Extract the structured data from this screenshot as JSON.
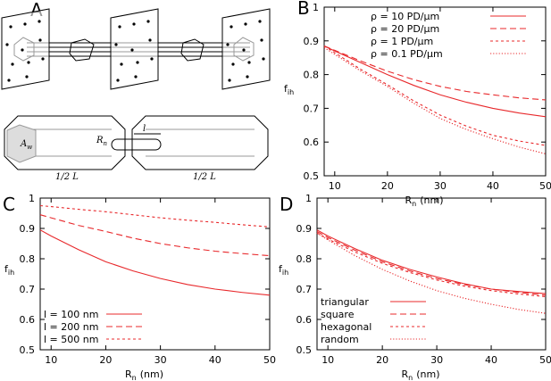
{
  "chart_data": [
    {
      "type": "line",
      "panel": "B",
      "x_label": "R",
      "x_label_sub": "n",
      "x_label_rest": "(nm)",
      "y_label": "f",
      "y_label_sub": "ih",
      "x": [
        8,
        10,
        15,
        20,
        25,
        30,
        35,
        40,
        45,
        50
      ],
      "xlim": [
        8,
        50
      ],
      "xticks": [
        10,
        20,
        30,
        40,
        50
      ],
      "ylim": [
        0.5,
        1
      ],
      "yticks": [
        0.5,
        0.6,
        0.7,
        0.8,
        0.9,
        1
      ],
      "legend": "upper-right",
      "series": [
        {
          "name": "ρ = 10 PD/µm",
          "color": "#e8282b",
          "linestyle": "solid",
          "values": [
            0.885,
            0.87,
            0.835,
            0.8,
            0.768,
            0.74,
            0.718,
            0.7,
            0.686,
            0.675
          ]
        },
        {
          "name": "ρ = 20 PD/µm",
          "color": "#e8282b",
          "linestyle": "dashed",
          "values": [
            0.885,
            0.872,
            0.84,
            0.81,
            0.785,
            0.765,
            0.75,
            0.74,
            0.731,
            0.725
          ]
        },
        {
          "name": "ρ = 1 PD/µm",
          "color": "#e8282b",
          "linestyle": "short-dashed",
          "values": [
            0.885,
            0.865,
            0.815,
            0.77,
            0.722,
            0.68,
            0.647,
            0.62,
            0.603,
            0.59
          ]
        },
        {
          "name": "ρ = 0.1 PD/µm",
          "color": "#e8282b",
          "linestyle": "dotted",
          "values": [
            0.88,
            0.86,
            0.81,
            0.765,
            0.715,
            0.67,
            0.637,
            0.61,
            0.585,
            0.565
          ]
        }
      ]
    },
    {
      "type": "line",
      "panel": "C",
      "x_label": "R",
      "x_label_sub": "n",
      "x_label_rest": "(nm)",
      "y_label": "f",
      "y_label_sub": "ih",
      "x": [
        8,
        10,
        15,
        20,
        25,
        30,
        35,
        40,
        45,
        50
      ],
      "xlim": [
        8,
        50
      ],
      "xticks": [
        10,
        20,
        30,
        40,
        50
      ],
      "ylim": [
        0.5,
        1
      ],
      "yticks": [
        0.5,
        0.6,
        0.7,
        0.8,
        0.9,
        1
      ],
      "legend": "lower-left",
      "series": [
        {
          "name": "l = 100 nm",
          "color": "#e8282b",
          "linestyle": "solid",
          "values": [
            0.895,
            0.875,
            0.83,
            0.79,
            0.76,
            0.735,
            0.715,
            0.7,
            0.689,
            0.68
          ]
        },
        {
          "name": "l = 200 nm",
          "color": "#e8282b",
          "linestyle": "dashed",
          "values": [
            0.945,
            0.935,
            0.91,
            0.89,
            0.868,
            0.85,
            0.836,
            0.825,
            0.817,
            0.81
          ]
        },
        {
          "name": "l = 500 nm",
          "color": "#e8282b",
          "linestyle": "short-dashed",
          "values": [
            0.975,
            0.972,
            0.963,
            0.955,
            0.945,
            0.935,
            0.927,
            0.92,
            0.912,
            0.905
          ]
        }
      ]
    },
    {
      "type": "line",
      "panel": "D",
      "x_label": "R",
      "x_label_sub": "n",
      "x_label_rest": "(nm)",
      "y_label": "f",
      "y_label_sub": "ih",
      "x": [
        8,
        10,
        15,
        20,
        25,
        30,
        35,
        40,
        45,
        50
      ],
      "xlim": [
        8,
        50
      ],
      "xticks": [
        10,
        20,
        30,
        40,
        50
      ],
      "ylim": [
        0.5,
        1
      ],
      "yticks": [
        0.5,
        0.6,
        0.7,
        0.8,
        0.9,
        1
      ],
      "legend": "lower-left",
      "series": [
        {
          "name": "triangular",
          "color": "#e8282b",
          "linestyle": "solid",
          "values": [
            0.895,
            0.875,
            0.833,
            0.795,
            0.765,
            0.74,
            0.718,
            0.7,
            0.692,
            0.685
          ]
        },
        {
          "name": "square",
          "color": "#e8282b",
          "linestyle": "dashed",
          "values": [
            0.89,
            0.87,
            0.828,
            0.79,
            0.76,
            0.735,
            0.715,
            0.7,
            0.689,
            0.68
          ]
        },
        {
          "name": "hexagonal",
          "color": "#e8282b",
          "linestyle": "short-dashed",
          "values": [
            0.885,
            0.865,
            0.822,
            0.785,
            0.755,
            0.73,
            0.71,
            0.695,
            0.684,
            0.675
          ]
        },
        {
          "name": "random",
          "color": "#e8282b",
          "linestyle": "dotted",
          "values": [
            0.885,
            0.862,
            0.81,
            0.765,
            0.727,
            0.695,
            0.67,
            0.65,
            0.633,
            0.62
          ]
        }
      ]
    }
  ],
  "diagram": {
    "panel": "A",
    "area": "A",
    "area_sub": "w",
    "radius": "R",
    "radius_sub": "n",
    "length": "l",
    "half_length_left": "1/2 L",
    "half_length_right": "1/2 L"
  }
}
